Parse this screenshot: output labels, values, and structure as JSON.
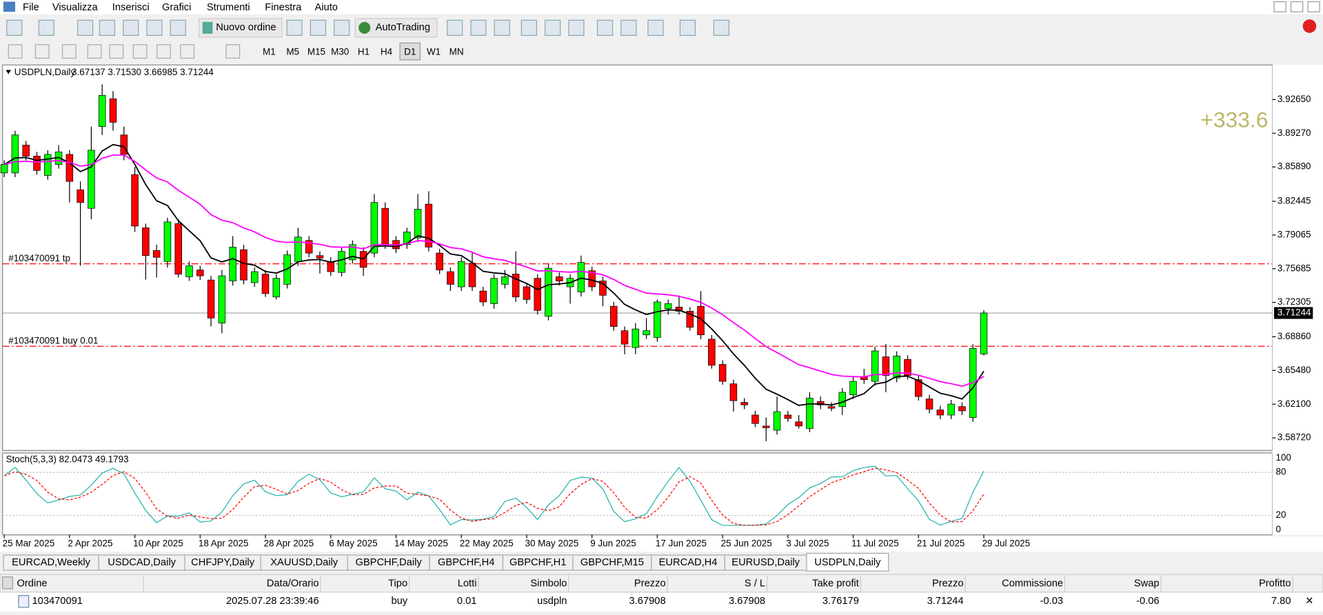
{
  "menu": [
    "File",
    "Visualizza",
    "Inserisci",
    "Grafici",
    "Strumenti",
    "Finestra",
    "Aiuto"
  ],
  "toolbar": {
    "new_order": "Nuovo ordine",
    "autotrading": "AutoTrading",
    "timeframes": [
      "M1",
      "M5",
      "M15",
      "M30",
      "H1",
      "H4",
      "D1",
      "W1",
      "MN"
    ]
  },
  "chart_data": {
    "type": "candlestick",
    "title": "USDPLN,Daily",
    "header_values": "3.67137 3.71530 3.66985 3.71244",
    "up_color": "#00ff00",
    "down_color": "#ff0000",
    "ma_fast_color": "#000000",
    "ma_slow_color": "#ff00ff",
    "candles": [
      [
        3.8529,
        3.8656,
        3.8487,
        3.8614
      ],
      [
        3.8529,
        3.8952,
        3.8487,
        3.891
      ],
      [
        3.8808,
        3.885,
        3.8656,
        3.8698
      ],
      [
        3.8698,
        3.874,
        3.8512,
        3.8554
      ],
      [
        3.8504,
        3.8757,
        3.8462,
        3.8715
      ],
      [
        3.8614,
        3.8808,
        3.8572,
        3.874
      ],
      [
        3.8715,
        3.8757,
        3.8233,
        3.8444
      ],
      [
        3.836,
        3.8444,
        3.76,
        3.8233
      ],
      [
        3.8174,
        3.8994,
        3.8064,
        3.8757
      ],
      [
        3.8994,
        3.9417,
        3.891,
        3.9307
      ],
      [
        3.9273,
        3.935,
        3.8952,
        3.9037
      ],
      [
        3.891,
        3.8994,
        3.8656,
        3.8715
      ],
      [
        3.8512,
        3.859,
        3.7937,
        3.7996
      ],
      [
        3.7979,
        3.8021,
        3.746,
        3.77
      ],
      [
        3.7751,
        3.781,
        3.748,
        3.7683
      ],
      [
        3.7641,
        3.808,
        3.758,
        3.8038
      ],
      [
        3.8021,
        3.8064,
        3.748,
        3.7514
      ],
      [
        3.7488,
        3.7641,
        3.7446,
        3.7598
      ],
      [
        3.7556,
        3.7598,
        3.7455,
        3.7497
      ],
      [
        3.7455,
        3.7497,
        3.699,
        3.7074
      ],
      [
        3.7023,
        3.7556,
        3.6922,
        3.7497
      ],
      [
        3.7446,
        3.7895,
        3.74,
        3.7785
      ],
      [
        3.7759,
        3.781,
        3.7412,
        3.7455
      ],
      [
        3.7429,
        3.7582,
        3.7387,
        3.7539
      ],
      [
        3.7514,
        3.7556,
        3.7285,
        3.7319
      ],
      [
        3.7285,
        3.7514,
        3.726,
        3.7472
      ],
      [
        3.7412,
        3.7752,
        3.737,
        3.7708
      ],
      [
        3.7641,
        3.7979,
        3.7598,
        3.7886
      ],
      [
        3.7852,
        3.7895,
        3.7683,
        3.7725
      ],
      [
        3.77,
        3.7742,
        3.752,
        3.7675
      ],
      [
        3.7641,
        3.7683,
        3.7497,
        3.7539
      ],
      [
        3.7531,
        3.7785,
        3.749,
        3.7742
      ],
      [
        3.7658,
        3.7852,
        3.762,
        3.781
      ],
      [
        3.7742,
        3.7785,
        3.7497,
        3.7582
      ],
      [
        3.7725,
        3.8318,
        3.7683,
        3.8233
      ],
      [
        3.8174,
        3.8233,
        3.7768,
        3.781
      ],
      [
        3.7852,
        3.7895,
        3.7725,
        3.7768
      ],
      [
        3.781,
        3.7979,
        3.7768,
        3.7937
      ],
      [
        3.7878,
        3.8318,
        3.7836,
        3.8165
      ],
      [
        3.8216,
        3.8345,
        3.7742,
        3.7785
      ],
      [
        3.7725,
        3.7768,
        3.7514,
        3.7556
      ],
      [
        3.7539,
        3.7582,
        3.7345,
        3.7412
      ],
      [
        3.7387,
        3.7683,
        3.7345,
        3.7641
      ],
      [
        3.7624,
        3.7725,
        3.7345,
        3.7387
      ],
      [
        3.7345,
        3.7387,
        3.7192,
        3.7235
      ],
      [
        3.7218,
        3.7514,
        3.7167,
        3.7472
      ],
      [
        3.7412,
        3.7556,
        3.737,
        3.7488
      ],
      [
        3.7514,
        3.7742,
        3.7235,
        3.7285
      ],
      [
        3.7387,
        3.7429,
        3.7218,
        3.726
      ],
      [
        3.7472,
        3.7514,
        3.7108,
        3.715
      ],
      [
        3.7091,
        3.7616,
        3.705,
        3.7573
      ],
      [
        3.7488,
        3.753,
        3.74,
        3.7446
      ],
      [
        3.7387,
        3.7514,
        3.7218,
        3.7472
      ],
      [
        3.7336,
        3.77,
        3.729,
        3.7632
      ],
      [
        3.7548,
        3.759,
        3.7345,
        3.7387
      ],
      [
        3.7446,
        3.749,
        3.7192,
        3.7302
      ],
      [
        3.7192,
        3.7235,
        3.6947,
        3.6989
      ],
      [
        3.6947,
        3.6989,
        3.671,
        3.6812
      ],
      [
        3.6778,
        3.7023,
        3.671,
        3.6964
      ],
      [
        3.6905,
        3.7074,
        3.6862,
        3.6947
      ],
      [
        3.6879,
        3.726,
        3.6837,
        3.7235
      ],
      [
        3.7167,
        3.726,
        3.7108,
        3.7218
      ],
      [
        3.7184,
        3.73,
        3.7108,
        3.7142
      ],
      [
        3.7142,
        3.7184,
        3.6947,
        3.6981
      ],
      [
        3.7192,
        3.7345,
        3.6862,
        3.6905
      ],
      [
        3.6862,
        3.6905,
        3.6566,
        3.66
      ],
      [
        3.6609,
        3.665,
        3.6405,
        3.6439
      ],
      [
        3.6414,
        3.6456,
        3.6135,
        3.6245
      ],
      [
        3.6228,
        3.627,
        3.616,
        3.6203
      ],
      [
        3.6101,
        3.6143,
        3.598,
        3.6016
      ],
      [
        3.5991,
        3.6076,
        3.5839,
        3.5974
      ],
      [
        3.5949,
        3.6287,
        3.5906,
        3.6135
      ],
      [
        3.6101,
        3.6143,
        3.6033,
        3.6067
      ],
      [
        3.6033,
        3.6101,
        3.5966,
        3.5991
      ],
      [
        3.5966,
        3.633,
        3.593,
        3.627
      ],
      [
        3.6236,
        3.6287,
        3.616,
        3.6203
      ],
      [
        3.6186,
        3.6228,
        3.614,
        3.6169
      ],
      [
        3.6186,
        3.6372,
        3.6101,
        3.6329
      ],
      [
        3.6304,
        3.6482,
        3.6262,
        3.6439
      ],
      [
        3.6482,
        3.6565,
        3.6414,
        3.6456
      ],
      [
        3.6439,
        3.6786,
        3.6398,
        3.6744
      ],
      [
        3.6685,
        3.6812,
        3.633,
        3.6498
      ],
      [
        3.6473,
        3.674,
        3.643,
        3.6693
      ],
      [
        3.6659,
        3.6701,
        3.6456,
        3.6498
      ],
      [
        3.6456,
        3.6498,
        3.6245,
        3.6287
      ],
      [
        3.6262,
        3.6304,
        3.6118,
        3.616
      ],
      [
        3.6152,
        3.6194,
        3.6059,
        3.6101
      ],
      [
        3.6101,
        3.6253,
        3.6059,
        3.6211
      ],
      [
        3.6186,
        3.6228,
        3.6101,
        3.6143
      ],
      [
        3.6076,
        3.6812,
        3.6033,
        3.6769
      ],
      [
        3.67137,
        3.7153,
        3.66985,
        3.71244
      ]
    ],
    "ylim": [
      3.5746,
      3.9612
    ],
    "yticks": [
      {
        "value": 3.9265,
        "label": "3.92650"
      },
      {
        "value": 3.8927,
        "label": "3.89270"
      },
      {
        "value": 3.8589,
        "label": "3.85890"
      },
      3.82445,
      3.79065,
      3.75685,
      3.72305,
      {
        "value": 3.6886,
        "label": "3.68860"
      },
      {
        "value": 3.6548,
        "label": "3.65480"
      },
      {
        "value": 3.621,
        "label": "3.62100"
      },
      {
        "value": 3.5872,
        "label": "3.58720"
      }
    ],
    "current_price": 3.71244,
    "profit_label": "+333.6",
    "orders": [
      {
        "label": "#103470091 tp",
        "price": 3.76179
      },
      {
        "label": "#103470091 buy 0.01",
        "price": 3.67908
      }
    ],
    "x_labels": [
      "25 Mar 2025",
      "2 Apr 2025",
      "10 Apr 2025",
      "18 Apr 2025",
      "28 Apr 2025",
      "6 May 2025",
      "14 May 2025",
      "22 May 2025",
      "30 May 2025",
      "9 Jun 2025",
      "17 Jun 2025",
      "25 Jun 2025",
      "3 Jul 2025",
      "11 Jul 2025",
      "21 Jul 2025",
      "29 Jul 2025"
    ],
    "indicator": {
      "title": "Stoch(5,3,3) 82.0473 49.1793",
      "ylim": [
        -7,
        107
      ],
      "yticks": [
        100,
        80,
        20,
        0
      ],
      "levels": [
        80,
        20
      ],
      "main_color": "#20b2aa",
      "signal_color": "#ff0000"
    }
  },
  "tabs": [
    "EURCAD,Weekly",
    "USDCAD,Daily",
    "CHFJPY,Daily",
    "XAUUSD,Daily",
    "GBPCHF,Daily",
    "GBPCHF,H4",
    "GBPCHF,H1",
    "GBPCHF,M15",
    "EURCAD,H4",
    "EURUSD,Daily",
    "USDPLN,Daily"
  ],
  "table": {
    "header": [
      "Ordine",
      "Data/Orario",
      "Tipo",
      "Lotti",
      "Simbolo",
      "Prezzo",
      "S / L",
      "Take profit",
      "Prezzo",
      "Commissione",
      "Swap",
      "Profitto"
    ],
    "rows": [
      [
        "103470091",
        "2025.07.28 23:39:46",
        "buy",
        "0.01",
        "usdpln",
        "3.67908",
        "3.67908",
        "3.76179",
        "3.71244",
        "-0.03",
        "-0.06",
        "7.80"
      ]
    ]
  }
}
